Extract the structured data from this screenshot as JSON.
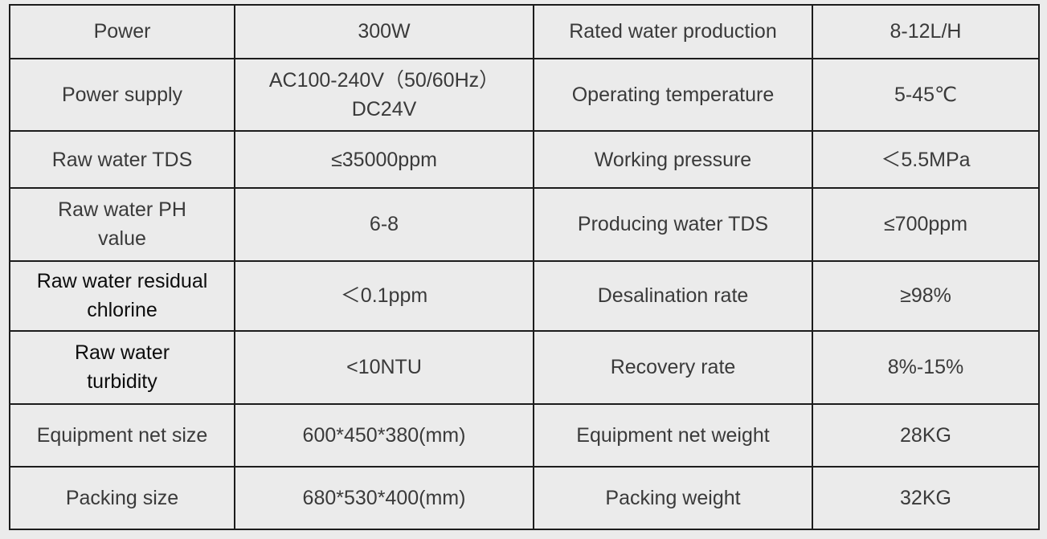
{
  "rows": [
    {
      "c1": "Power",
      "c2": "300W",
      "c3": "Rated water production",
      "c4": "8-12L/H"
    },
    {
      "c1": "Power supply",
      "c2": "AC100-240V（50/60Hz）\nDC24V",
      "c3": "Operating temperature",
      "c4": "5-45℃"
    },
    {
      "c1": "Raw water TDS",
      "c2": "≤35000ppm",
      "c3": "Working pressure",
      "c4": "＜5.5MPa"
    },
    {
      "c1": "Raw water PH\nvalue",
      "c2": "6-8",
      "c3": "Producing water TDS",
      "c4": "≤700ppm"
    },
    {
      "c1": "Raw water residual\nchlorine",
      "c2": "＜0.1ppm",
      "c3": "Desalination rate",
      "c4": "≥98%"
    },
    {
      "c1": "Raw water\nturbidity",
      "c2": "<10NTU",
      "c3": "Recovery rate",
      "c4": "8%-15%"
    },
    {
      "c1": "Equipment net size",
      "c2": "600*450*380(mm)",
      "c3": "Equipment net weight",
      "c4": "28KG"
    },
    {
      "c1": "Packing size",
      "c2": "680*530*400(mm)",
      "c3": "Packing weight",
      "c4": "32KG"
    }
  ],
  "colors": {
    "background": "#ebebeb",
    "border": "#1c1c1c",
    "text": "#3a3a3a",
    "text_dark": "#0d0d0d"
  }
}
